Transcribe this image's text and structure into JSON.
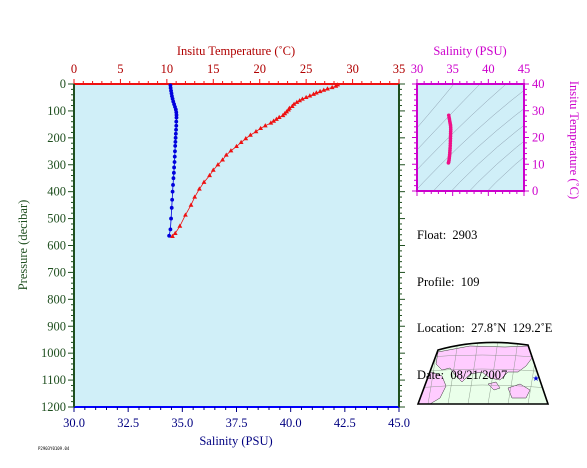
{
  "colors": {
    "plot_bg": "#d0eff8",
    "temperature": "#ee1111",
    "salinity": "#0000dd",
    "ts_points": "#ee1188",
    "pressure_axis": "#1f4f1f",
    "salinity_axis": "#000080",
    "temp_axis": "#b00000",
    "magenta_axis": "#cc00cc",
    "land": "#ffccff",
    "ocean": "#eaffea"
  },
  "info": {
    "float": "Float:  2903",
    "profile": "Profile:  109",
    "location": "Location:  27.8˚N  129.2˚E",
    "date": "Date:  08/21/2007"
  },
  "stamp_text": "P2903Y0109.04",
  "chart_data": [
    {
      "type": "line",
      "title": "",
      "xlabel_bottom": "Salinity (PSU)",
      "xlabel_top": "Insitu Temperature (˚C)",
      "ylabel": "Pressure (decibar)",
      "xlim_salinity": [
        30,
        45
      ],
      "xlim_temperature": [
        0,
        35
      ],
      "ylim": [
        1200,
        0
      ],
      "salinity_ticks": [
        "30.0",
        "32.5",
        "35.0",
        "37.5",
        "40.0",
        "42.5",
        "45.0"
      ],
      "temperature_ticks": [
        "0",
        "5",
        "10",
        "15",
        "20",
        "25",
        "30",
        "35"
      ],
      "pressure_ticks": [
        "0",
        "100",
        "200",
        "300",
        "400",
        "500",
        "600",
        "700",
        "800",
        "900",
        "1000",
        "1100",
        "1200"
      ],
      "series": [
        {
          "axis": "salinity",
          "marker": "circle",
          "points": [
            [
              34.45,
              5
            ],
            [
              34.46,
              15
            ],
            [
              34.48,
              25
            ],
            [
              34.5,
              35
            ],
            [
              34.52,
              45
            ],
            [
              34.55,
              55
            ],
            [
              34.58,
              65
            ],
            [
              34.62,
              75
            ],
            [
              34.66,
              85
            ],
            [
              34.7,
              95
            ],
            [
              34.72,
              105
            ],
            [
              34.73,
              115
            ],
            [
              34.73,
              125
            ],
            [
              34.72,
              140
            ],
            [
              34.72,
              155
            ],
            [
              34.71,
              170
            ],
            [
              34.7,
              185
            ],
            [
              34.69,
              200
            ],
            [
              34.68,
              215
            ],
            [
              34.67,
              230
            ],
            [
              34.66,
              250
            ],
            [
              34.65,
              270
            ],
            [
              34.64,
              290
            ],
            [
              34.62,
              310
            ],
            [
              34.61,
              330
            ],
            [
              34.59,
              350
            ],
            [
              34.57,
              375
            ],
            [
              34.55,
              400
            ],
            [
              34.53,
              430
            ],
            [
              34.51,
              460
            ],
            [
              34.48,
              500
            ],
            [
              34.45,
              540
            ],
            [
              34.39,
              564
            ]
          ]
        },
        {
          "axis": "temperature",
          "marker": "triangle",
          "points": [
            [
              28.4,
              3
            ],
            [
              28.2,
              8
            ],
            [
              27.8,
              13
            ],
            [
              27.3,
              18
            ],
            [
              26.9,
              23
            ],
            [
              26.5,
              28
            ],
            [
              26.1,
              33
            ],
            [
              25.8,
              38
            ],
            [
              25.4,
              44
            ],
            [
              25.0,
              50
            ],
            [
              24.6,
              56
            ],
            [
              24.3,
              62
            ],
            [
              24.0,
              68
            ],
            [
              23.7,
              75
            ],
            [
              23.5,
              83
            ],
            [
              23.2,
              90
            ],
            [
              23.1,
              96
            ],
            [
              22.9,
              103
            ],
            [
              22.7,
              110
            ],
            [
              22.5,
              117
            ],
            [
              22.1,
              124
            ],
            [
              21.8,
              131
            ],
            [
              21.5,
              138
            ],
            [
              21.2,
              145
            ],
            [
              20.6,
              155
            ],
            [
              20.1,
              165
            ],
            [
              19.6,
              177
            ],
            [
              19.0,
              190
            ],
            [
              18.5,
              203
            ],
            [
              18.0,
              217
            ],
            [
              17.5,
              232
            ],
            [
              16.9,
              248
            ],
            [
              16.4,
              264
            ],
            [
              16.0,
              282
            ],
            [
              15.5,
              300
            ],
            [
              15.0,
              320
            ],
            [
              14.6,
              340
            ],
            [
              14.0,
              365
            ],
            [
              13.5,
              390
            ],
            [
              13.0,
              420
            ],
            [
              12.6,
              450
            ],
            [
              12.0,
              487
            ],
            [
              11.4,
              528
            ],
            [
              10.9,
              555
            ],
            [
              10.6,
              566
            ]
          ]
        }
      ]
    },
    {
      "type": "scatter",
      "title": "",
      "xlabel": "Salinity (PSU)",
      "ylabel": "Insitu Temperature (˚C)",
      "xlim": [
        30,
        45
      ],
      "ylim": [
        0,
        40
      ],
      "x_ticks": [
        "30",
        "35",
        "40",
        "45"
      ],
      "y_ticks": [
        "0",
        "10",
        "20",
        "30",
        "40"
      ],
      "points": [
        [
          34.45,
          28.3
        ],
        [
          34.5,
          27.5
        ],
        [
          34.55,
          26.8
        ],
        [
          34.6,
          26.0
        ],
        [
          34.65,
          25.3
        ],
        [
          34.7,
          24.6
        ],
        [
          34.72,
          23.8
        ],
        [
          34.73,
          23.0
        ],
        [
          34.72,
          22.2
        ],
        [
          34.71,
          21.4
        ],
        [
          34.7,
          20.5
        ],
        [
          34.69,
          19.6
        ],
        [
          34.68,
          18.7
        ],
        [
          34.67,
          17.8
        ],
        [
          34.66,
          16.9
        ],
        [
          34.64,
          16.0
        ],
        [
          34.62,
          15.2
        ],
        [
          34.6,
          14.4
        ],
        [
          34.58,
          13.6
        ],
        [
          34.55,
          12.9
        ],
        [
          34.52,
          12.2
        ],
        [
          34.49,
          11.5
        ],
        [
          34.45,
          10.9
        ],
        [
          34.4,
          10.5
        ]
      ]
    }
  ]
}
